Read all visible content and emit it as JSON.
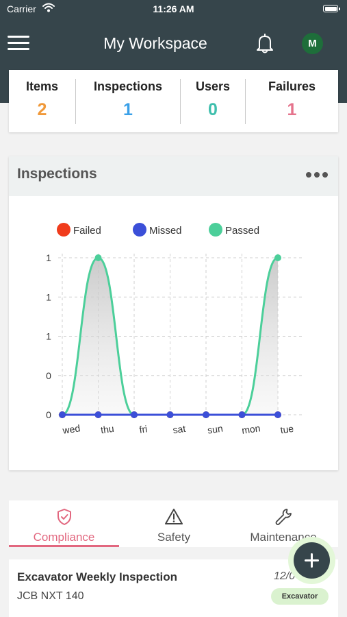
{
  "status_bar": {
    "carrier": "Carrier",
    "time": "11:26 AM",
    "wifi_icon": "wifi-icon",
    "battery_icon": "battery-icon"
  },
  "header": {
    "title": "My Workspace",
    "menu_icon": "hamburger-icon",
    "bell_icon": "bell-icon",
    "avatar_initial": "M"
  },
  "stats": [
    {
      "label": "Items",
      "value": "2",
      "color": "#f0993a"
    },
    {
      "label": "Inspections",
      "value": "1",
      "color": "#3aa0e8"
    },
    {
      "label": "Users",
      "value": "0",
      "color": "#3fbfad"
    },
    {
      "label": "Failures",
      "value": "1",
      "color": "#e5738c"
    }
  ],
  "inspections_card": {
    "title": "Inspections",
    "more_icon": "more-dots-icon"
  },
  "chart_data": {
    "type": "area",
    "categories": [
      "wed",
      "thu",
      "fri",
      "sat",
      "sun",
      "mon",
      "tue"
    ],
    "y_tick_labels": [
      "0",
      "0",
      "1",
      "1",
      "1"
    ],
    "ylim": [
      0,
      1
    ],
    "grid": true,
    "legend_position": "top",
    "series": [
      {
        "name": "Failed",
        "color": "#f03c1c",
        "values": [
          0,
          0,
          0,
          0,
          0,
          0,
          0
        ]
      },
      {
        "name": "Missed",
        "color": "#3b4fd8",
        "values": [
          0,
          0,
          0,
          0,
          0,
          0,
          0
        ]
      },
      {
        "name": "Passed",
        "color": "#4ccf9a",
        "values": [
          0,
          1,
          0,
          0,
          0,
          0,
          1
        ]
      }
    ]
  },
  "tabs": [
    {
      "label": "Compliance",
      "icon": "shield-check-icon",
      "active": true
    },
    {
      "label": "Safety",
      "icon": "warning-triangle-icon",
      "active": false
    },
    {
      "label": "Maintenance",
      "icon": "wrench-icon",
      "active": false
    }
  ],
  "list": [
    {
      "title": "Excavator Weekly Inspection",
      "subtitle": "JCB NXT 140",
      "date": "12/0",
      "tag": "Excavator"
    }
  ],
  "fab": {
    "icon": "plus-icon"
  },
  "colors": {
    "header_bg": "#36454b",
    "accent_pink": "#e2677f",
    "tag_bg": "#daf2cf"
  }
}
